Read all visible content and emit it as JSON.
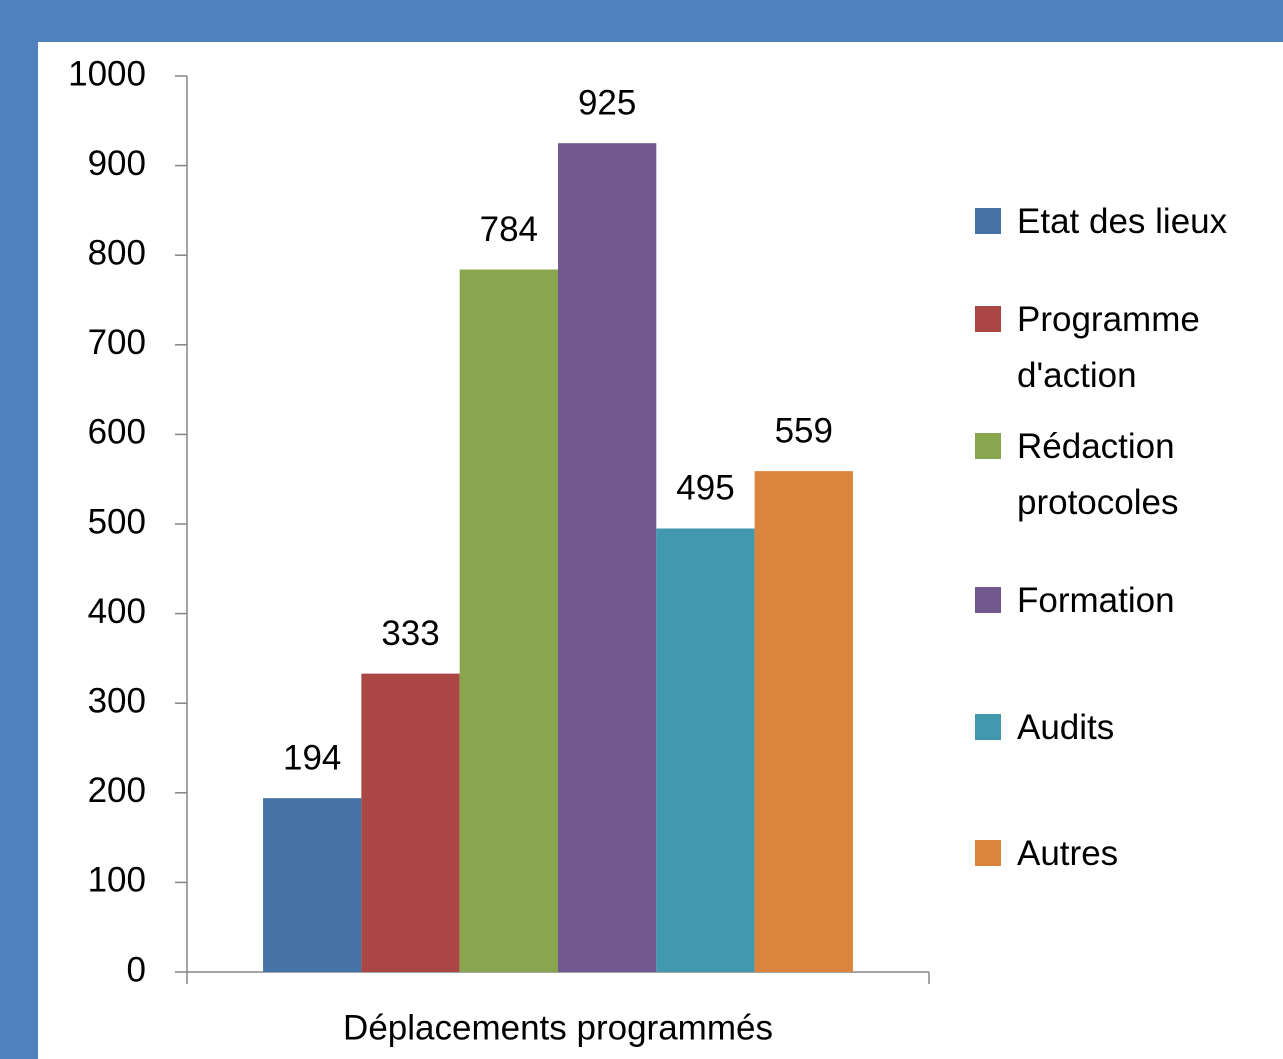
{
  "chart_data": {
    "type": "bar",
    "categories": [
      "Déplacements programmés"
    ],
    "series": [
      {
        "name": "Etat des lieux",
        "color": "#4572a7",
        "values": [
          194
        ]
      },
      {
        "name": "Programme d'action",
        "color": "#aa4643",
        "values": [
          333
        ]
      },
      {
        "name": "Rédaction protocoles",
        "color": "#89a54e",
        "values": [
          784
        ]
      },
      {
        "name": "Formation",
        "color": "#71588f",
        "values": [
          925
        ]
      },
      {
        "name": "Audits",
        "color": "#4198af",
        "values": [
          495
        ]
      },
      {
        "name": "Autres",
        "color": "#db843d",
        "values": [
          559
        ]
      }
    ],
    "ylim": [
      0,
      1000
    ],
    "yticks": [
      0,
      100,
      200,
      300,
      400,
      500,
      600,
      700,
      800,
      900,
      1000
    ],
    "grid": false,
    "legend": "right"
  }
}
